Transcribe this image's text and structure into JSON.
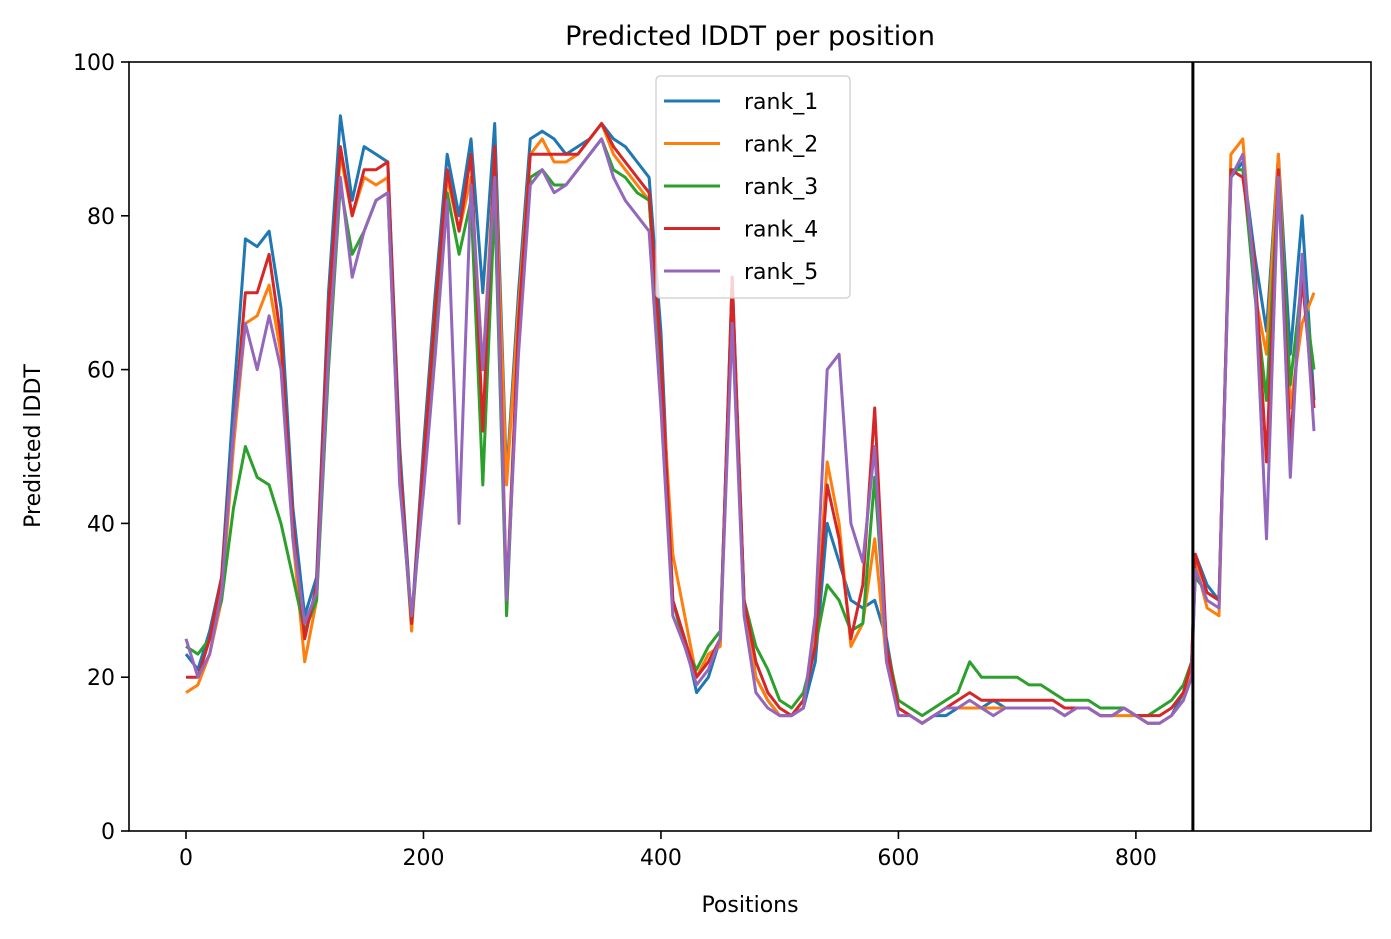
{
  "chart_data": {
    "type": "line",
    "title": "Predicted lDDT per position",
    "xlabel": "Positions",
    "ylabel": "Predicted lDDT",
    "xlim": [
      -48,
      998
    ],
    "ylim": [
      0,
      100
    ],
    "xticks": [
      0,
      200,
      400,
      600,
      800
    ],
    "yticks": [
      0,
      20,
      40,
      60,
      80,
      100
    ],
    "grid": false,
    "legend_position": "top-center",
    "vline_x": 848,
    "vline_color": "#000000",
    "x": [
      0,
      10,
      20,
      30,
      40,
      50,
      60,
      70,
      80,
      90,
      100,
      110,
      120,
      130,
      140,
      150,
      160,
      170,
      180,
      190,
      200,
      210,
      220,
      230,
      240,
      250,
      260,
      270,
      280,
      290,
      300,
      310,
      320,
      330,
      340,
      350,
      360,
      370,
      380,
      390,
      400,
      410,
      420,
      430,
      440,
      450,
      460,
      470,
      480,
      490,
      500,
      510,
      520,
      530,
      540,
      550,
      560,
      570,
      580,
      590,
      600,
      610,
      620,
      630,
      640,
      650,
      660,
      670,
      680,
      690,
      700,
      710,
      720,
      730,
      740,
      750,
      760,
      770,
      780,
      790,
      800,
      810,
      820,
      830,
      840,
      847,
      850,
      860,
      870,
      880,
      890,
      900,
      910,
      920,
      930,
      940,
      950
    ],
    "series": [
      {
        "name": "rank_1",
        "color": "#1f77b4",
        "values": [
          23,
          21,
          26,
          33,
          56,
          77,
          76,
          78,
          68,
          42,
          28,
          33,
          70,
          93,
          82,
          89,
          88,
          87,
          50,
          27,
          50,
          70,
          88,
          80,
          90,
          70,
          92,
          46,
          70,
          90,
          91,
          90,
          88,
          89,
          90,
          92,
          90,
          89,
          87,
          85,
          65,
          30,
          25,
          18,
          20,
          25,
          72,
          30,
          20,
          17,
          15,
          15,
          16,
          22,
          40,
          35,
          30,
          29,
          30,
          25,
          16,
          15,
          14,
          15,
          15,
          16,
          16,
          16,
          17,
          16,
          16,
          16,
          16,
          16,
          15,
          16,
          16,
          15,
          15,
          16,
          15,
          14,
          14,
          15,
          18,
          22,
          36,
          32,
          30,
          85,
          87,
          75,
          65,
          88,
          62,
          80,
          56
        ]
      },
      {
        "name": "rank_2",
        "color": "#ff7f0e",
        "values": [
          18,
          19,
          23,
          30,
          50,
          66,
          67,
          71,
          62,
          38,
          22,
          30,
          66,
          88,
          80,
          85,
          84,
          85,
          48,
          26,
          48,
          68,
          85,
          78,
          85,
          60,
          88,
          45,
          68,
          88,
          90,
          87,
          87,
          88,
          90,
          92,
          88,
          86,
          84,
          82,
          60,
          36,
          28,
          20,
          23,
          24,
          70,
          28,
          20,
          17,
          15,
          15,
          17,
          25,
          48,
          40,
          24,
          27,
          38,
          22,
          16,
          15,
          14,
          15,
          16,
          16,
          16,
          16,
          16,
          16,
          16,
          16,
          16,
          16,
          15,
          16,
          16,
          15,
          15,
          15,
          15,
          14,
          14,
          15,
          17,
          22,
          35,
          29,
          28,
          88,
          90,
          70,
          62,
          88,
          55,
          66,
          70
        ]
      },
      {
        "name": "rank_3",
        "color": "#2ca02c",
        "values": [
          24,
          23,
          25,
          30,
          42,
          50,
          46,
          45,
          40,
          33,
          26,
          30,
          60,
          84,
          75,
          78,
          82,
          83,
          46,
          27,
          45,
          65,
          83,
          75,
          82,
          45,
          82,
          28,
          65,
          85,
          86,
          84,
          84,
          86,
          88,
          90,
          86,
          85,
          83,
          82,
          60,
          30,
          24,
          21,
          24,
          26,
          70,
          30,
          24,
          21,
          17,
          16,
          18,
          24,
          32,
          30,
          26,
          27,
          46,
          24,
          17,
          16,
          15,
          16,
          17,
          18,
          22,
          20,
          20,
          20,
          20,
          19,
          19,
          18,
          17,
          17,
          17,
          16,
          16,
          16,
          15,
          15,
          16,
          17,
          19,
          22,
          33,
          31,
          30,
          86,
          86,
          70,
          56,
          85,
          58,
          72,
          60
        ]
      },
      {
        "name": "rank_4",
        "color": "#d62728",
        "values": [
          20,
          20,
          25,
          33,
          52,
          70,
          70,
          75,
          64,
          40,
          25,
          32,
          68,
          89,
          80,
          86,
          86,
          87,
          48,
          27,
          48,
          68,
          86,
          78,
          88,
          52,
          89,
          30,
          66,
          88,
          88,
          88,
          88,
          88,
          90,
          92,
          89,
          87,
          85,
          83,
          62,
          30,
          25,
          20,
          22,
          25,
          72,
          30,
          22,
          18,
          16,
          15,
          17,
          24,
          45,
          38,
          25,
          32,
          55,
          24,
          16,
          15,
          14,
          15,
          16,
          17,
          18,
          17,
          17,
          17,
          17,
          17,
          17,
          17,
          16,
          16,
          16,
          15,
          15,
          16,
          15,
          15,
          15,
          16,
          18,
          22,
          36,
          31,
          30,
          86,
          85,
          74,
          48,
          86,
          50,
          72,
          55
        ]
      },
      {
        "name": "rank_5",
        "color": "#9467bd",
        "values": [
          25,
          20,
          23,
          31,
          52,
          66,
          60,
          67,
          60,
          38,
          27,
          31,
          62,
          85,
          72,
          78,
          82,
          83,
          45,
          28,
          44,
          62,
          82,
          40,
          84,
          60,
          85,
          30,
          62,
          84,
          86,
          83,
          84,
          86,
          88,
          90,
          85,
          82,
          80,
          78,
          55,
          28,
          24,
          19,
          21,
          25,
          66,
          28,
          18,
          16,
          15,
          15,
          16,
          28,
          60,
          62,
          40,
          35,
          50,
          22,
          15,
          15,
          14,
          15,
          16,
          16,
          17,
          16,
          15,
          16,
          16,
          16,
          16,
          16,
          15,
          16,
          16,
          15,
          15,
          16,
          15,
          14,
          14,
          15,
          17,
          20,
          34,
          30,
          29,
          85,
          88,
          72,
          38,
          85,
          46,
          75,
          52
        ]
      }
    ]
  }
}
